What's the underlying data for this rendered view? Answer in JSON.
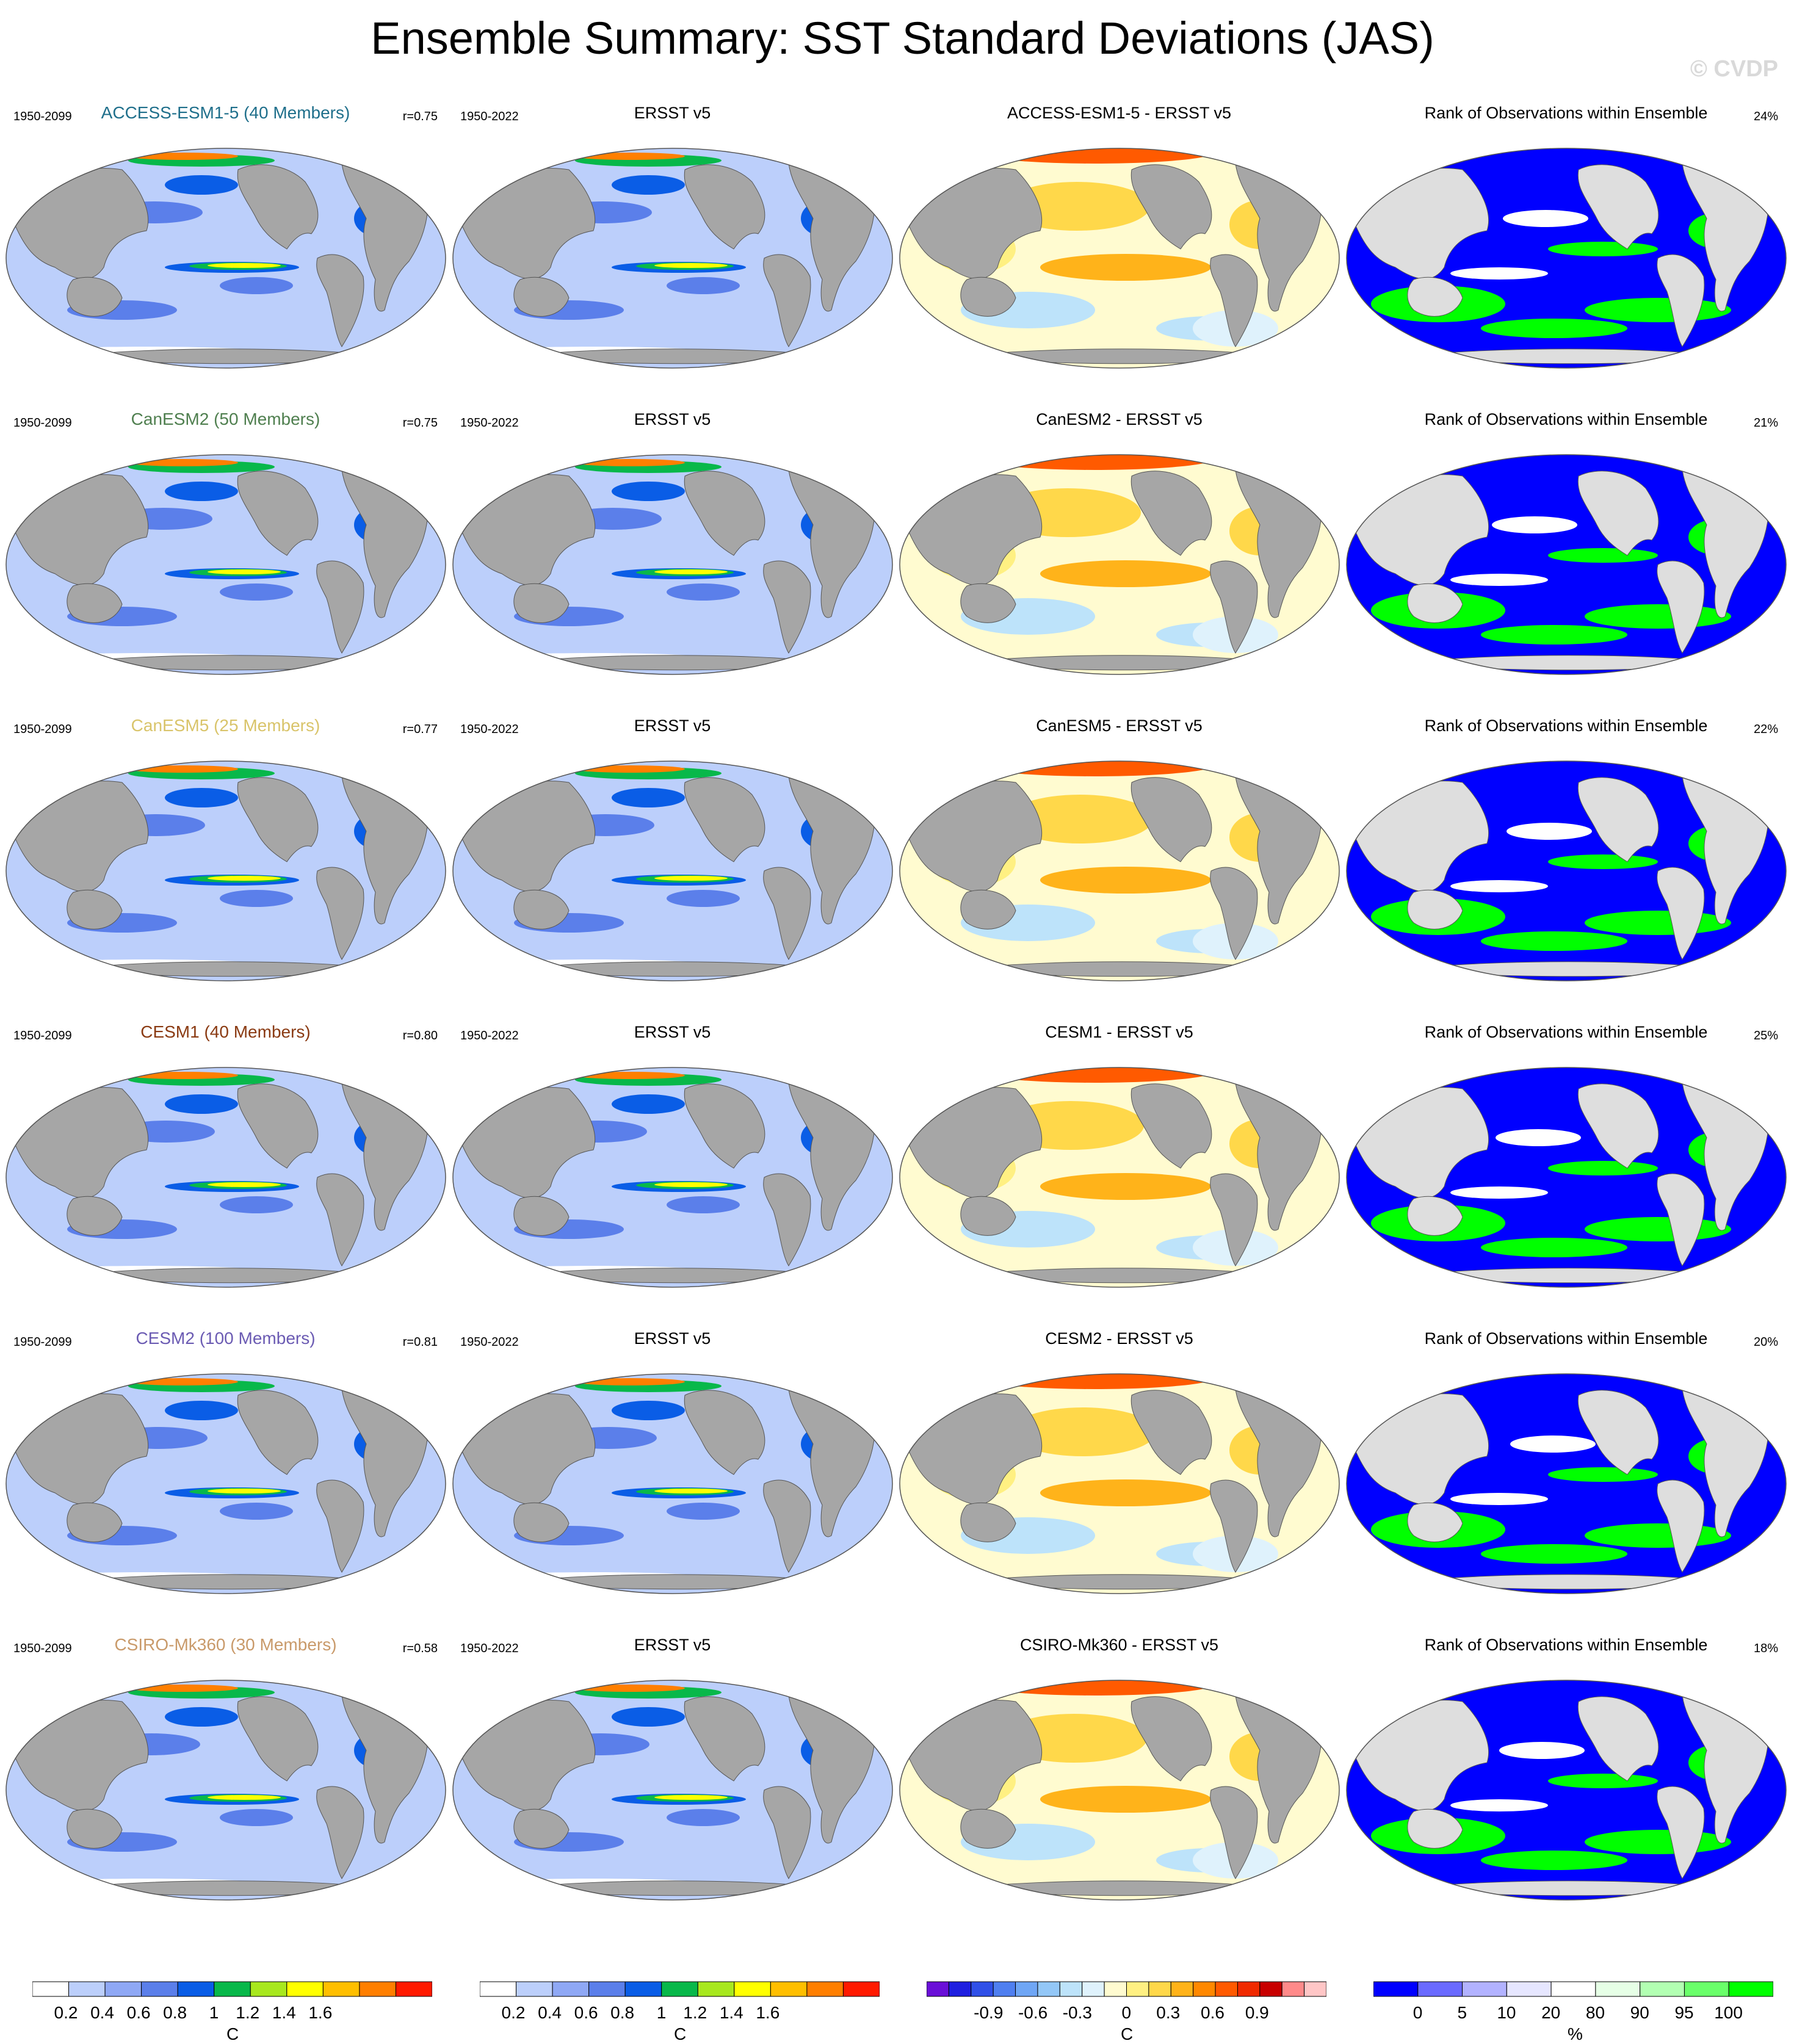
{
  "title": "Ensemble Summary: SST Standard Deviations (JAS)",
  "watermark": "© CVDP",
  "obs_name": "ERSST v5",
  "obs_period": "1950-2022",
  "model_period": "1950-2099",
  "rank_title": "Rank of Observations within Ensemble",
  "land_color": "#a6a6a6",
  "rank_land_color": "#dedede",
  "rows": [
    {
      "model_title": "ACCESS-ESM1-5 (40 Members)",
      "title_color": "#1f6f8b",
      "r": "r=0.75",
      "diff_title": "ACCESS-ESM1-5 - ERSST v5",
      "rank_pct": "24%"
    },
    {
      "model_title": "CanESM2 (50 Members)",
      "title_color": "#4f7f4f",
      "r": "r=0.75",
      "diff_title": "CanESM2 - ERSST v5",
      "rank_pct": "21%"
    },
    {
      "model_title": "CanESM5 (25 Members)",
      "title_color": "#d9c46a",
      "r": "r=0.77",
      "diff_title": "CanESM5 - ERSST v5",
      "rank_pct": "22%"
    },
    {
      "model_title": "CESM1 (40 Members)",
      "title_color": "#8a3a12",
      "r": "r=0.80",
      "diff_title": "CESM1 - ERSST v5",
      "rank_pct": "25%"
    },
    {
      "model_title": "CESM2 (100 Members)",
      "title_color": "#6b5bb3",
      "r": "r=0.81",
      "diff_title": "CESM2 - ERSST v5",
      "rank_pct": "20%"
    },
    {
      "model_title": "CSIRO-Mk360 (30 Members)",
      "title_color": "#c99a6a",
      "r": "r=0.58",
      "diff_title": "CSIRO-Mk360 - ERSST v5",
      "rank_pct": "18%"
    }
  ],
  "chart_data": [
    {
      "type": "heatmap",
      "name": "SST standard deviation colorbar",
      "unit": "C",
      "tick_labels": [
        "0.2",
        "0.4",
        "0.6",
        "0.8",
        "1",
        "1.2",
        "1.4",
        "1.6"
      ],
      "colors": [
        "#ffffff",
        "#bccffb",
        "#8fa8f5",
        "#5b7fea",
        "#0a5de6",
        "#08b84a",
        "#a8e81e",
        "#ffff00",
        "#ffbf00",
        "#ff7f00",
        "#ff1a00"
      ]
    },
    {
      "type": "heatmap",
      "name": "Difference colorbar",
      "unit": "C",
      "tick_labels": [
        "-0.9",
        "-0.6",
        "-0.3",
        "0",
        "0.3",
        "0.6",
        "0.9"
      ],
      "colors": [
        "#6a0fd8",
        "#1f1fe0",
        "#3050e8",
        "#4f7ff0",
        "#6fa6f5",
        "#93c7f7",
        "#bde3fa",
        "#dff2fc",
        "#fffbd0",
        "#fff082",
        "#ffd84a",
        "#ffb31a",
        "#ff8800",
        "#ff5a00",
        "#f02a00",
        "#c80000",
        "#ff8a8a",
        "#ffc6c6"
      ]
    },
    {
      "type": "heatmap",
      "name": "Rank colorbar",
      "unit": "%",
      "tick_labels": [
        "0",
        "5",
        "10",
        "20",
        "80",
        "90",
        "95",
        "100"
      ],
      "colors": [
        "#0000ff",
        "#6a6aff",
        "#b2b2ff",
        "#e6e6ff",
        "#ffffff",
        "#e6ffe6",
        "#b2ffb2",
        "#6aff6a",
        "#00ff00"
      ]
    }
  ]
}
